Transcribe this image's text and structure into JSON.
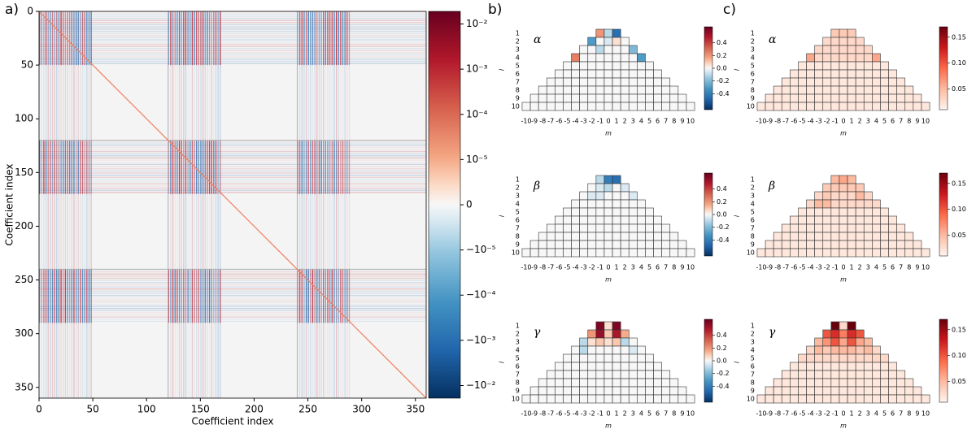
{
  "chart_data": [
    {
      "type": "heatmap",
      "label": "a)",
      "xlabel": "Coefficient index",
      "ylabel": "Coefficient index",
      "xlim": [
        0,
        360
      ],
      "ylim": [
        0,
        360
      ],
      "xticks": [
        0,
        50,
        100,
        150,
        200,
        250,
        300,
        350
      ],
      "yticks": [
        0,
        50,
        100,
        150,
        200,
        250,
        300,
        350
      ],
      "scale": "symlog",
      "linthresh": 1e-05,
      "clim": [
        -0.019,
        0.019
      ],
      "cticks": [
        {
          "value": 0.01,
          "label": "10⁻²"
        },
        {
          "value": 0.001,
          "label": "10⁻³"
        },
        {
          "value": 0.0001,
          "label": "10⁻⁴"
        },
        {
          "value": 1e-05,
          "label": "10⁻⁵"
        },
        0,
        {
          "value": -1e-05,
          "label": "−10⁻⁵"
        },
        {
          "value": -0.0001,
          "label": "−10⁻⁴"
        },
        {
          "value": -0.001,
          "label": "−10⁻³"
        },
        {
          "value": -0.01,
          "label": "−10⁻²"
        }
      ],
      "colormap": "RdBu_r"
    },
    {
      "type": "triangle-grid",
      "label": "b)",
      "xlabel": "m",
      "ylabel": "l",
      "colormap": "RdBu_r",
      "l": [
        1,
        2,
        3,
        4,
        5,
        6,
        7,
        8,
        9,
        10
      ],
      "m": [
        -10,
        -9,
        -8,
        -7,
        -6,
        -5,
        -4,
        -3,
        -2,
        -1,
        0,
        1,
        2,
        3,
        4,
        5,
        6,
        7,
        8,
        9,
        10
      ],
      "clim": [
        -0.65,
        0.65
      ],
      "cticks": [
        0.4,
        0.2,
        {
          "value": 0,
          "label": "0.0"
        },
        -0.2,
        -0.4
      ],
      "maps": [
        {
          "symbol": "α",
          "rows": [
            [
              0.2,
              -0.1,
              -0.45
            ],
            [
              -0.3,
              0,
              -0.05,
              0.05,
              0
            ],
            [
              0,
              0,
              -0.1,
              0,
              0,
              0,
              -0.2
            ],
            [
              0.25,
              0,
              0,
              0,
              0,
              0,
              0,
              0,
              -0.3
            ],
            [
              0,
              0,
              0,
              0,
              0,
              0,
              0,
              0,
              0,
              0,
              0
            ],
            [
              0,
              0,
              0,
              0,
              0,
              0,
              0,
              0,
              0,
              0,
              0,
              0,
              0
            ],
            [
              0,
              0,
              0,
              0,
              0,
              0,
              0,
              0,
              0,
              0,
              0,
              0,
              0,
              0,
              0
            ],
            [
              0,
              0,
              0,
              0,
              0,
              0,
              0,
              0,
              0,
              0,
              0,
              0,
              0,
              0,
              0,
              0,
              0
            ],
            [
              0,
              0,
              0,
              0,
              0,
              0,
              0,
              0,
              0,
              0,
              0,
              0,
              0,
              0,
              0,
              0,
              0,
              0,
              0
            ],
            [
              0,
              0,
              0,
              0,
              0,
              0,
              0,
              0,
              0,
              0,
              0,
              0,
              0,
              0,
              0,
              0,
              0,
              0,
              0,
              0,
              0
            ]
          ]
        },
        {
          "symbol": "β",
          "rows": [
            [
              -0.1,
              -0.4,
              -0.45
            ],
            [
              0,
              -0.05,
              -0.1,
              0,
              -0.05
            ],
            [
              0,
              -0.05,
              -0.05,
              0,
              0,
              0,
              -0.05
            ],
            [
              0,
              0,
              0,
              0,
              0,
              0,
              0,
              0,
              0
            ],
            [
              0,
              0,
              0,
              0,
              0,
              0,
              0,
              0,
              0,
              0,
              0
            ],
            [
              0,
              0,
              0,
              0,
              0,
              0,
              0,
              0,
              0,
              0,
              0,
              0,
              0
            ],
            [
              0,
              0,
              0,
              0,
              0,
              0,
              0,
              0,
              0,
              0,
              0,
              0,
              0,
              0,
              0
            ],
            [
              0,
              0,
              0,
              0,
              0,
              0,
              0,
              0,
              0,
              0,
              0,
              0,
              0,
              0,
              0,
              0,
              0
            ],
            [
              0,
              0,
              0,
              0,
              0,
              0,
              0,
              0,
              0,
              0,
              0,
              0,
              0,
              0,
              0,
              0,
              0,
              0,
              0
            ],
            [
              0,
              0,
              0,
              0,
              0,
              0,
              0,
              0,
              0,
              0,
              0,
              0,
              0,
              0,
              0,
              0,
              0,
              0,
              0,
              0,
              0
            ]
          ]
        },
        {
          "symbol": "γ",
          "rows": [
            [
              0.6,
              0.05,
              0.6
            ],
            [
              0.2,
              0.55,
              0.1,
              0.5,
              0.15
            ],
            [
              -0.1,
              0.05,
              0.1,
              0.05,
              0.1,
              -0.1,
              0
            ],
            [
              0,
              -0.1,
              0,
              0,
              0,
              0,
              0,
              -0.05,
              0
            ],
            [
              0,
              0,
              0,
              0,
              0,
              0,
              0,
              0,
              0,
              0,
              0
            ],
            [
              0,
              0,
              0,
              0,
              0,
              0,
              0,
              0,
              0,
              0,
              0,
              0,
              0
            ],
            [
              0,
              0,
              0,
              0,
              0,
              0,
              0,
              0,
              0,
              0,
              0,
              0,
              0,
              0,
              0
            ],
            [
              0,
              0,
              0,
              0,
              0,
              0,
              0,
              0,
              0,
              0,
              0,
              0,
              0,
              0,
              0,
              0,
              0
            ],
            [
              0,
              0,
              0,
              0,
              0,
              0,
              0,
              0,
              0,
              0,
              0,
              0,
              0,
              0,
              0,
              0,
              0,
              0,
              0
            ],
            [
              0,
              0,
              0,
              0,
              0,
              0,
              0,
              0,
              0,
              0,
              0,
              0,
              0,
              0,
              0,
              0,
              0,
              0,
              0,
              0,
              0
            ]
          ]
        }
      ]
    },
    {
      "type": "triangle-grid",
      "label": "c)",
      "xlabel": "m",
      "ylabel": "l",
      "colormap": "Reds",
      "l": [
        1,
        2,
        3,
        4,
        5,
        6,
        7,
        8,
        9,
        10
      ],
      "m": [
        -10,
        -9,
        -8,
        -7,
        -6,
        -5,
        -4,
        -3,
        -2,
        -1,
        0,
        1,
        2,
        3,
        4,
        5,
        6,
        7,
        8,
        9,
        10
      ],
      "clim": [
        0.01,
        0.17
      ],
      "cticks": [
        0.15,
        {
          "value": 0.1,
          "label": "0.10"
        },
        0.05
      ],
      "maps": [
        {
          "symbol": "α",
          "rows": [
            [
              0.04,
              0.04,
              0.04
            ],
            [
              0.03,
              0.03,
              0.03,
              0.03,
              0.03
            ],
            [
              0.03,
              0.03,
              0.03,
              0.03,
              0.03,
              0.03,
              0.03
            ],
            [
              0.06,
              0.03,
              0.03,
              0.03,
              0.03,
              0.03,
              0.03,
              0.03,
              0.06
            ],
            [
              0.02,
              0.02,
              0.02,
              0.02,
              0.02,
              0.02,
              0.02,
              0.02,
              0.02,
              0.02,
              0.02
            ],
            [
              0.02,
              0.02,
              0.02,
              0.02,
              0.02,
              0.02,
              0.02,
              0.02,
              0.02,
              0.02,
              0.02,
              0.02,
              0.02
            ],
            [
              0.02,
              0.02,
              0.02,
              0.02,
              0.02,
              0.02,
              0.02,
              0.02,
              0.02,
              0.02,
              0.02,
              0.02,
              0.02,
              0.02,
              0.02
            ],
            [
              0.02,
              0.02,
              0.02,
              0.02,
              0.02,
              0.02,
              0.02,
              0.02,
              0.02,
              0.02,
              0.02,
              0.02,
              0.02,
              0.02,
              0.02,
              0.02,
              0.02
            ],
            [
              0.02,
              0.02,
              0.02,
              0.02,
              0.02,
              0.02,
              0.02,
              0.02,
              0.02,
              0.02,
              0.02,
              0.02,
              0.02,
              0.02,
              0.02,
              0.02,
              0.02,
              0.02,
              0.02
            ],
            [
              0.02,
              0.02,
              0.02,
              0.02,
              0.02,
              0.02,
              0.02,
              0.02,
              0.02,
              0.02,
              0.02,
              0.02,
              0.02,
              0.02,
              0.02,
              0.02,
              0.02,
              0.02,
              0.02,
              0.02,
              0.02
            ]
          ]
        },
        {
          "symbol": "β",
          "rows": [
            [
              0.05,
              0.06,
              0.05
            ],
            [
              0.04,
              0.04,
              0.04,
              0.04,
              0.04
            ],
            [
              0.03,
              0.04,
              0.03,
              0.03,
              0.03,
              0.05,
              0.03
            ],
            [
              0.03,
              0.05,
              0.05,
              0.03,
              0.03,
              0.03,
              0.03,
              0.03,
              0.03
            ],
            [
              0.02,
              0.02,
              0.02,
              0.02,
              0.02,
              0.02,
              0.02,
              0.02,
              0.02,
              0.02,
              0.02
            ],
            [
              0.02,
              0.02,
              0.02,
              0.02,
              0.02,
              0.02,
              0.02,
              0.02,
              0.02,
              0.02,
              0.02,
              0.02,
              0.02
            ],
            [
              0.02,
              0.02,
              0.02,
              0.02,
              0.02,
              0.02,
              0.02,
              0.02,
              0.02,
              0.02,
              0.02,
              0.02,
              0.02,
              0.02,
              0.02
            ],
            [
              0.02,
              0.02,
              0.02,
              0.02,
              0.02,
              0.02,
              0.02,
              0.02,
              0.02,
              0.02,
              0.02,
              0.02,
              0.02,
              0.02,
              0.02,
              0.02,
              0.02
            ],
            [
              0.02,
              0.02,
              0.02,
              0.02,
              0.02,
              0.02,
              0.02,
              0.02,
              0.02,
              0.02,
              0.02,
              0.02,
              0.02,
              0.02,
              0.02,
              0.02,
              0.02,
              0.02,
              0.02
            ],
            [
              0.02,
              0.02,
              0.02,
              0.02,
              0.02,
              0.02,
              0.02,
              0.02,
              0.02,
              0.02,
              0.02,
              0.02,
              0.02,
              0.02,
              0.02,
              0.02,
              0.02,
              0.02,
              0.02,
              0.02,
              0.02
            ]
          ]
        },
        {
          "symbol": "γ",
          "rows": [
            [
              0.17,
              0.03,
              0.17
            ],
            [
              0.1,
              0.12,
              0.08,
              0.12,
              0.1
            ],
            [
              0.05,
              0.07,
              0.1,
              0.06,
              0.1,
              0.06,
              0.05
            ],
            [
              0.03,
              0.05,
              0.04,
              0.05,
              0.05,
              0.05,
              0.04,
              0.05,
              0.03
            ],
            [
              0.03,
              0.03,
              0.03,
              0.03,
              0.03,
              0.03,
              0.03,
              0.03,
              0.03,
              0.03,
              0.03
            ],
            [
              0.02,
              0.02,
              0.02,
              0.02,
              0.02,
              0.02,
              0.02,
              0.02,
              0.02,
              0.02,
              0.02,
              0.02,
              0.02
            ],
            [
              0.02,
              0.02,
              0.02,
              0.02,
              0.02,
              0.02,
              0.02,
              0.02,
              0.02,
              0.02,
              0.02,
              0.02,
              0.02,
              0.02,
              0.02
            ],
            [
              0.02,
              0.02,
              0.02,
              0.02,
              0.02,
              0.02,
              0.02,
              0.02,
              0.02,
              0.02,
              0.02,
              0.02,
              0.02,
              0.02,
              0.02,
              0.02,
              0.02
            ],
            [
              0.02,
              0.02,
              0.02,
              0.02,
              0.02,
              0.02,
              0.02,
              0.02,
              0.02,
              0.02,
              0.02,
              0.02,
              0.02,
              0.02,
              0.02,
              0.02,
              0.02,
              0.02,
              0.02
            ],
            [
              0.02,
              0.02,
              0.02,
              0.02,
              0.02,
              0.02,
              0.02,
              0.02,
              0.02,
              0.02,
              0.02,
              0.02,
              0.02,
              0.02,
              0.02,
              0.02,
              0.02,
              0.02,
              0.02,
              0.02,
              0.02
            ]
          ]
        }
      ]
    }
  ]
}
